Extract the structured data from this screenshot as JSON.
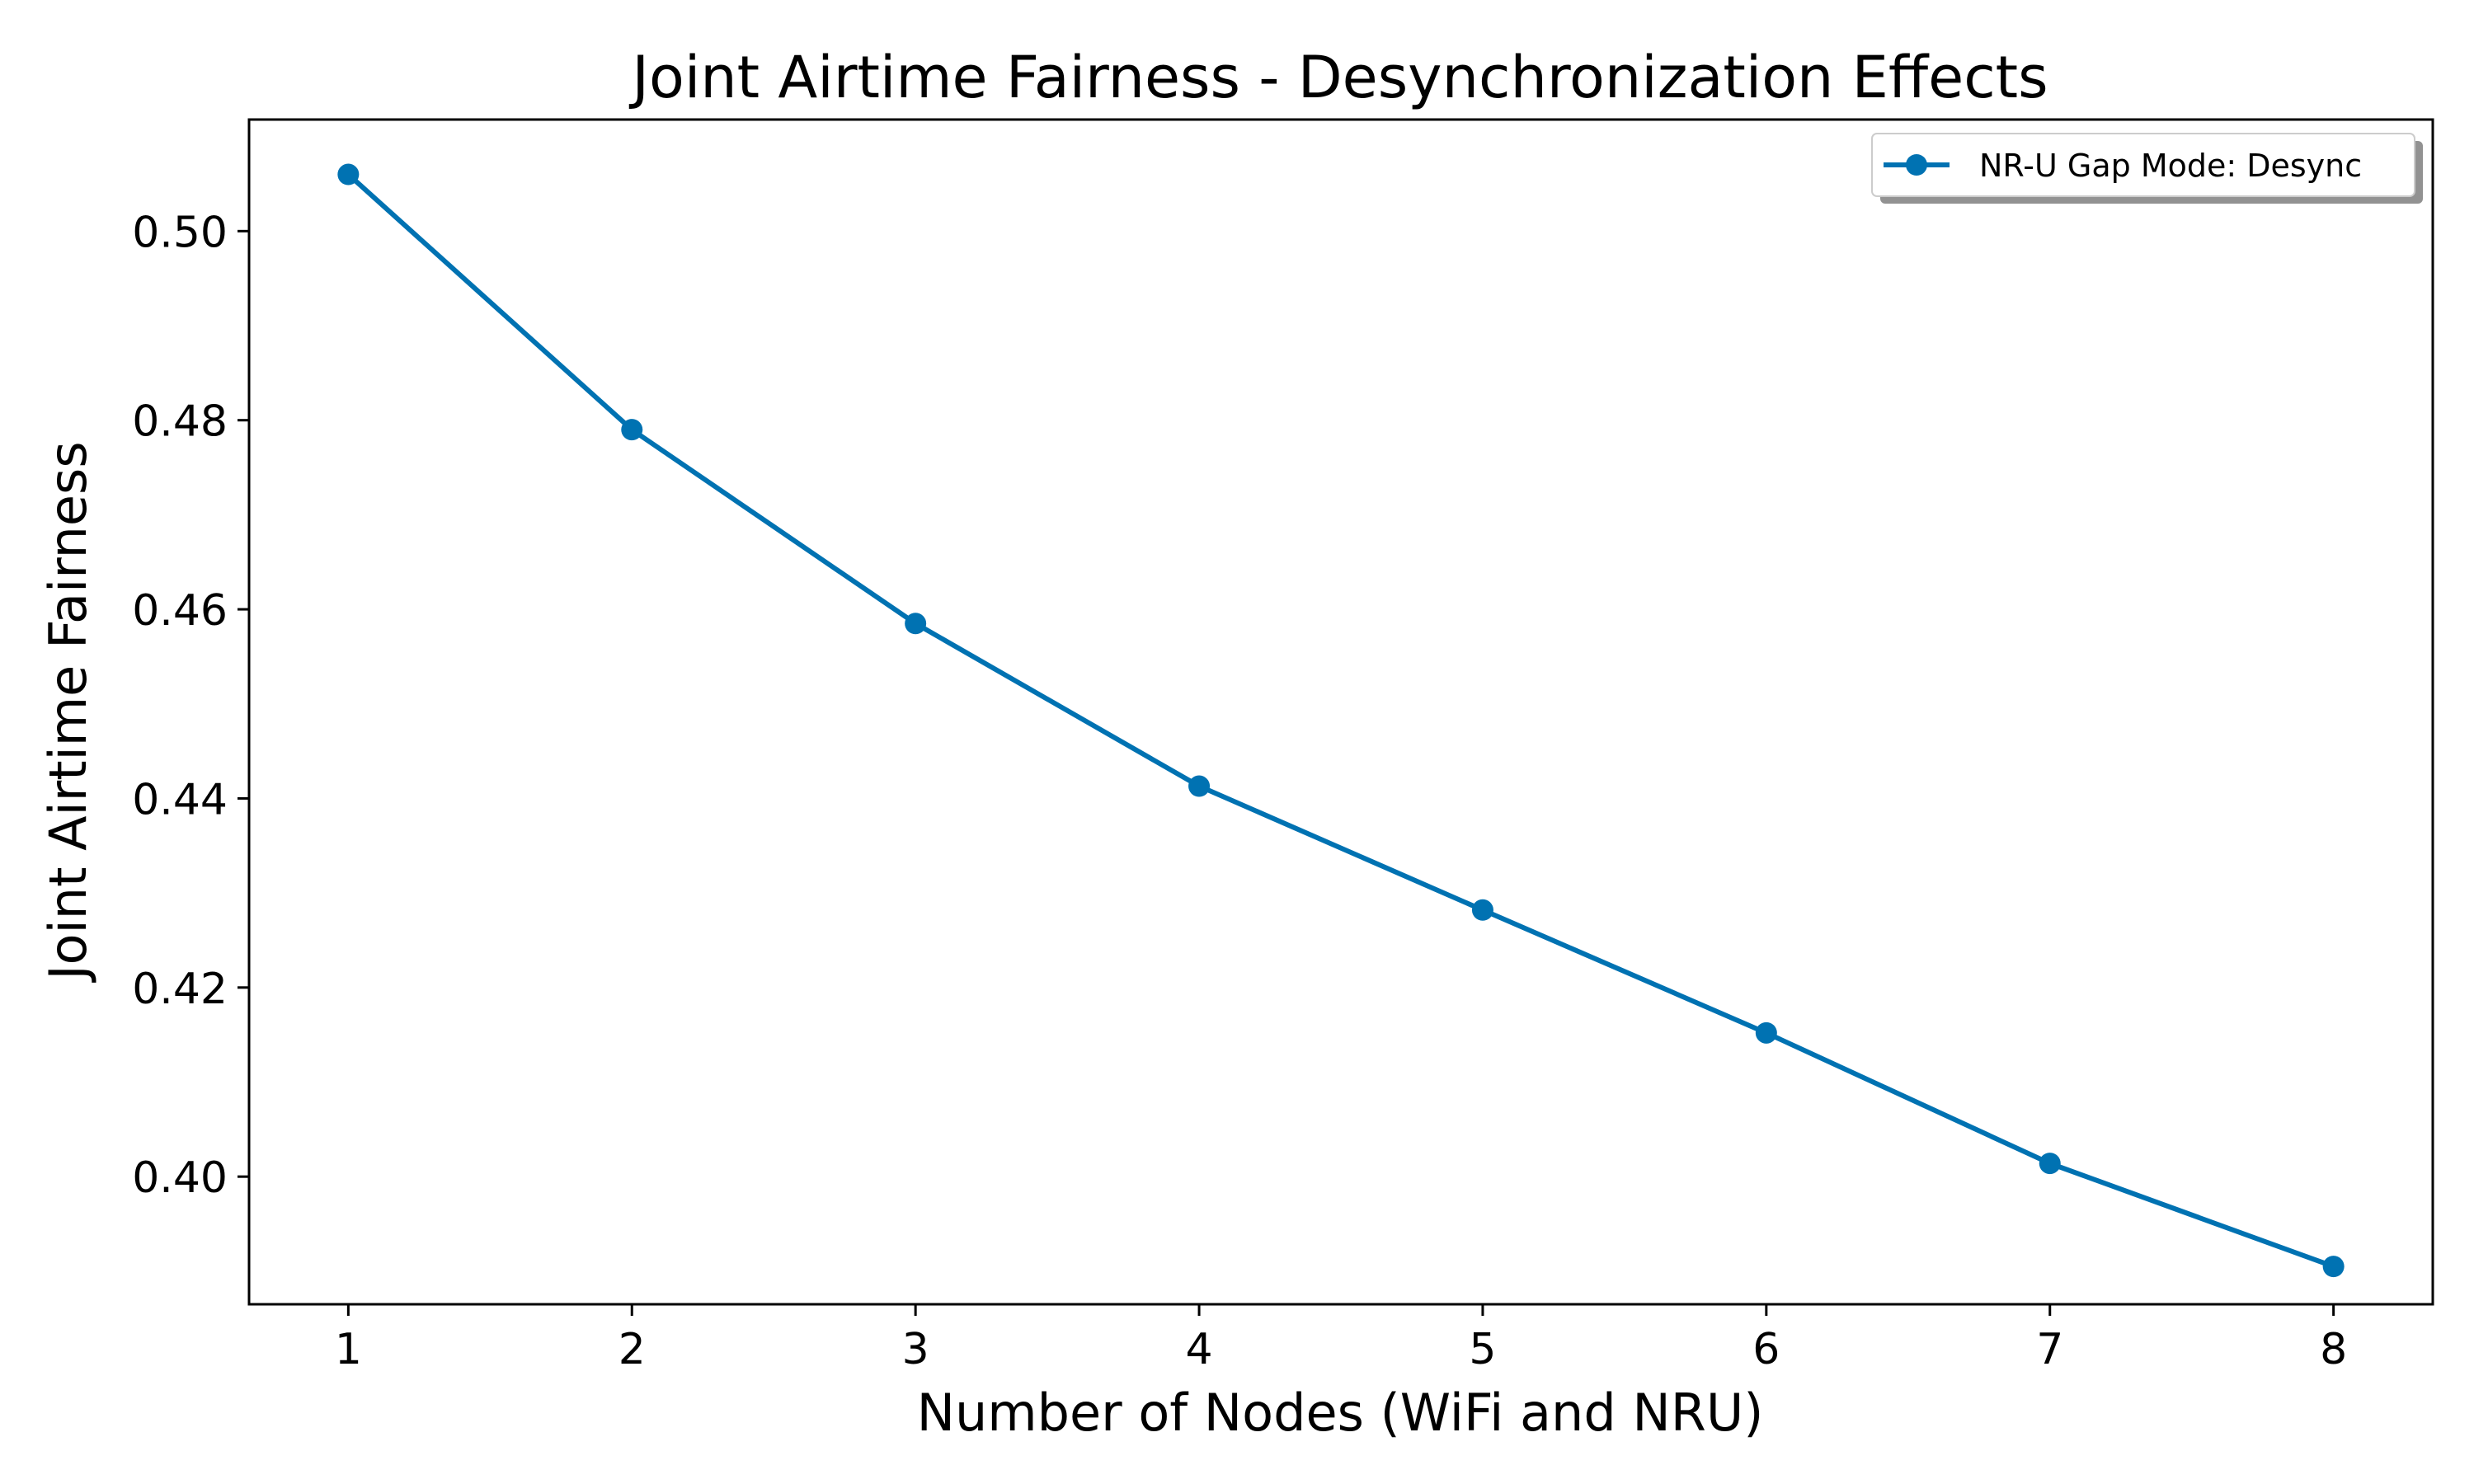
{
  "chart_data": {
    "type": "line",
    "title": "Joint Airtime Fairness - Desynchronization Effects",
    "xlabel": "Number of Nodes (WiFi and NRU)",
    "ylabel": "Joint Airtime Fairness",
    "x": [
      1,
      2,
      3,
      4,
      5,
      6,
      7,
      8
    ],
    "x_tick_labels": [
      "1",
      "2",
      "3",
      "4",
      "5",
      "6",
      "7",
      "8"
    ],
    "y_ticks": [
      0.4,
      0.42,
      0.44,
      0.46,
      0.48,
      0.5
    ],
    "y_tick_labels": [
      "0.40",
      "0.42",
      "0.44",
      "0.46",
      "0.48",
      "0.50"
    ],
    "xlim": [
      0.65,
      8.35
    ],
    "ylim": [
      0.3865,
      0.5118
    ],
    "grid": false,
    "legend_position": "upper right",
    "series": [
      {
        "name": "NR-U Gap Mode: Desync",
        "color": "#0072b2",
        "marker": "circle",
        "values": [
          0.506,
          0.479,
          0.4585,
          0.4413,
          0.4282,
          0.4152,
          0.4014,
          0.3905
        ]
      }
    ]
  }
}
